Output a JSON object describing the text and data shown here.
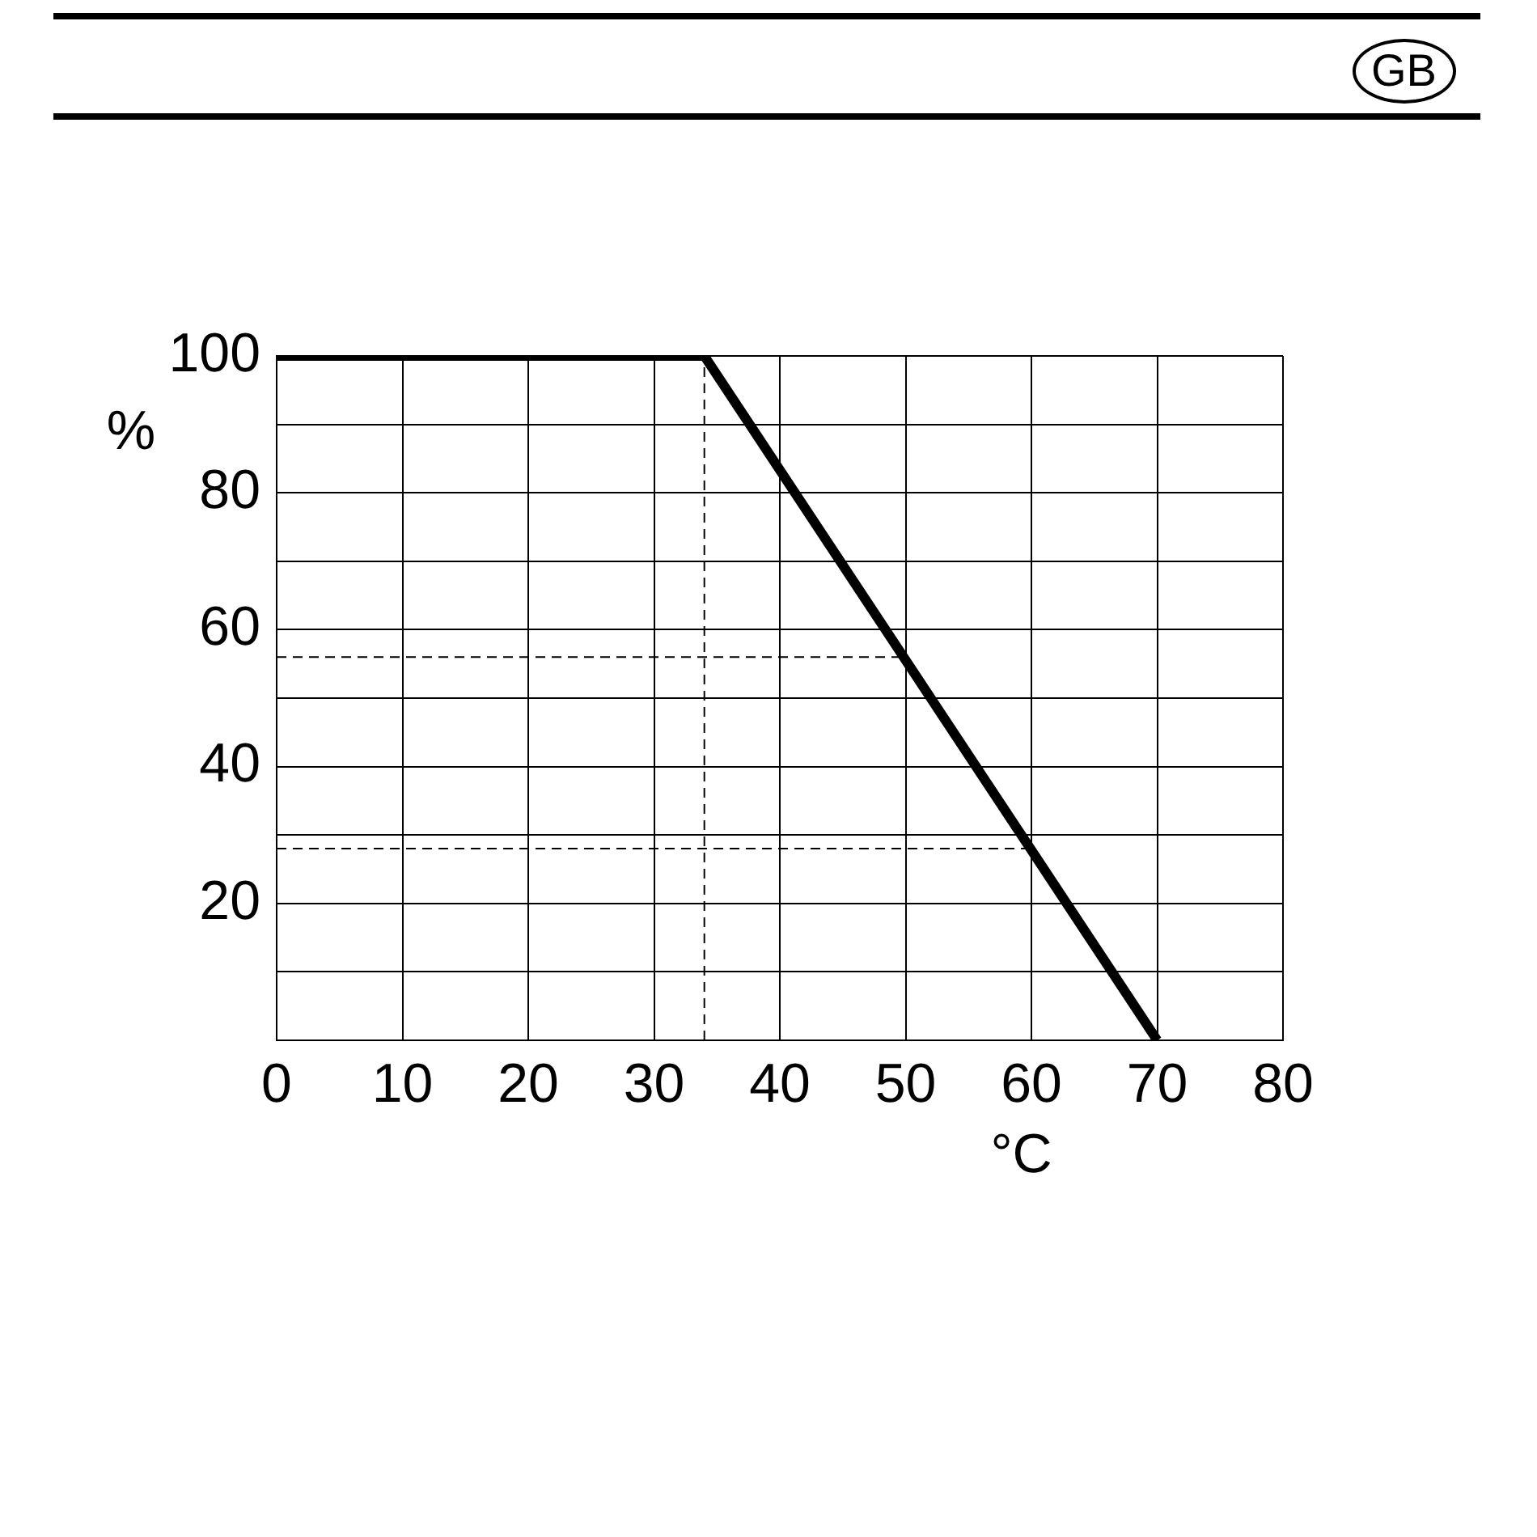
{
  "chart_data": {
    "type": "line",
    "xlabel": "°C",
    "ylabel": "%",
    "annotations": [
      "GB"
    ],
    "series": [
      {
        "x": [
          0,
          34,
          70
        ],
        "values": [
          100,
          100,
          0
        ],
        "color": "#000000",
        "line_style": "solid"
      },
      {
        "x": [
          34,
          34
        ],
        "values": [
          0,
          100
        ],
        "color": "#000000",
        "line_style": "dashed"
      },
      {
        "x": [
          0,
          50
        ],
        "values": [
          56,
          56
        ],
        "color": "#000000",
        "line_style": "dashed"
      },
      {
        "x": [
          0,
          60
        ],
        "values": [
          28,
          28
        ],
        "color": "#000000",
        "line_style": "dashed"
      }
    ],
    "xlim": [
      0,
      80
    ],
    "xticks": [
      0,
      10,
      20,
      30,
      40,
      50,
      60,
      70,
      80
    ],
    "ylim": [
      0,
      100
    ],
    "yticks": [
      {
        "value": 0,
        "label": null
      },
      {
        "value": 10,
        "label": null
      },
      20,
      {
        "value": 30,
        "label": null
      },
      40,
      {
        "value": 50,
        "label": null
      },
      60,
      {
        "value": 70,
        "label": null
      },
      80,
      {
        "value": 90,
        "label": null
      },
      100
    ],
    "grid": true,
    "legend": false,
    "marker": "none"
  }
}
